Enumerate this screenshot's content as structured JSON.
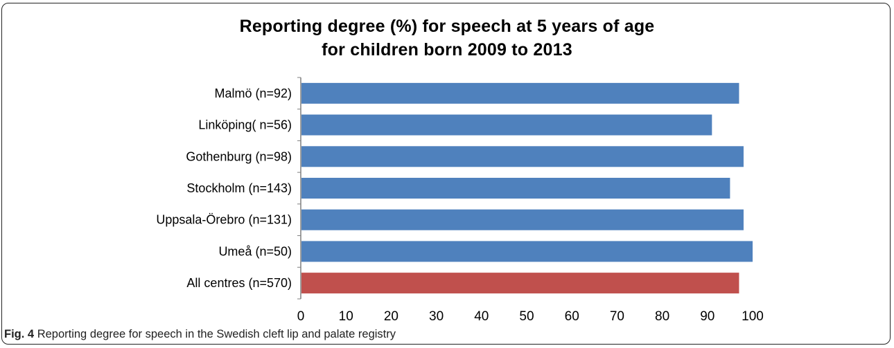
{
  "caption": {
    "label": "Fig. 4",
    "text": "Reporting degree for speech in the Swedish cleft lip and palate registry"
  },
  "colors": {
    "series": "#4f81bd",
    "total": "#c0504d",
    "axis": "#7f7f7f"
  },
  "chart_data": {
    "type": "bar",
    "orientation": "horizontal",
    "title_lines": [
      "Reporting degree (%) for speech at 5 years of age",
      "for children born 2009 to 2013"
    ],
    "categories": [
      "Malmö (n=92)",
      "Linköping( n=56)",
      "Gothenburg (n=98)",
      "Stockholm (n=143)",
      "Uppsala-Örebro (n=131)",
      "Umeå (n=50)",
      "All centres (n=570)"
    ],
    "values": [
      97,
      91,
      98,
      95,
      98,
      100,
      97
    ],
    "xlim": [
      0,
      100
    ],
    "xticks": [
      "0",
      "10",
      "20",
      "30",
      "40",
      "50",
      "60",
      "70",
      "80",
      "90",
      "100"
    ],
    "grid": false,
    "legend": "none"
  }
}
